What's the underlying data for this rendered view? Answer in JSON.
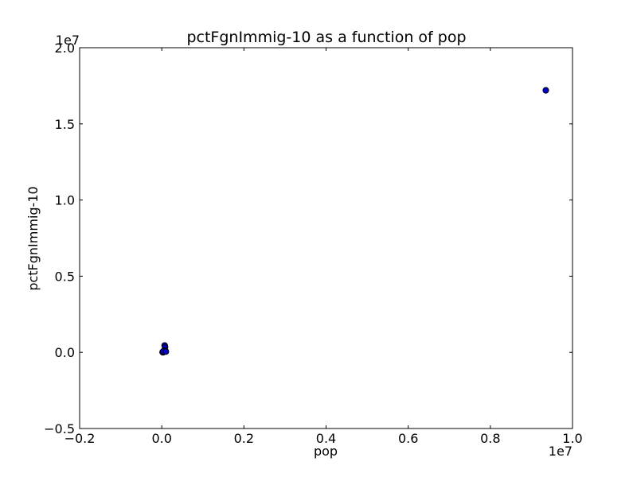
{
  "chart_data": {
    "type": "scatter",
    "title": "pctFgnImmig-10 as a function of pop",
    "xlabel": "pop",
    "ylabel": "pctFgnImmig-10",
    "x_offset_label": "1e7",
    "y_offset_label": "1e7",
    "xlim": [
      -0.2,
      1.0
    ],
    "ylim": [
      -0.5,
      2.0
    ],
    "x_ticks": [
      -0.2,
      0.0,
      0.2,
      0.4,
      0.6,
      0.8,
      1.0
    ],
    "y_ticks": [
      -0.5,
      0.0,
      0.5,
      1.0,
      1.5,
      2.0
    ],
    "x_tick_labels": [
      "−0.2",
      "0.0",
      "0.2",
      "0.4",
      "0.6",
      "0.8",
      "1.0"
    ],
    "y_tick_labels": [
      "−0.5",
      "0.0",
      "0.5",
      "1.0",
      "1.5",
      "2.0"
    ],
    "grid": false,
    "marker_color": "#0000cc",
    "marker_edge_color": "#000000",
    "points": [
      {
        "x": 0.935,
        "y": 1.72
      },
      {
        "x": 0.007,
        "y": 0.045
      },
      {
        "x": 0.008,
        "y": 0.035
      },
      {
        "x": 0.009,
        "y": 0.01
      },
      {
        "x": 0.005,
        "y": 0.005
      },
      {
        "x": 0.003,
        "y": 0.0
      },
      {
        "x": 0.002,
        "y": 0.002
      },
      {
        "x": 0.006,
        "y": 0.012
      },
      {
        "x": 0.004,
        "y": 0.008
      },
      {
        "x": 0.01,
        "y": 0.005
      }
    ]
  }
}
